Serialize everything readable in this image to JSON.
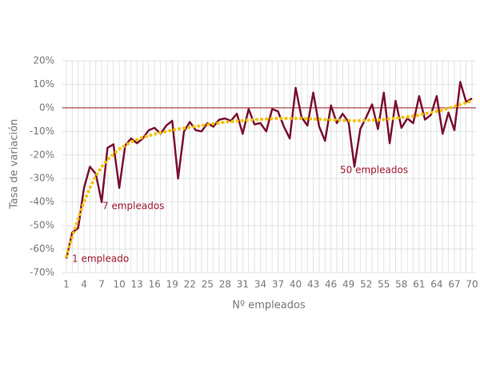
{
  "chart_data": {
    "type": "line",
    "y_label": "Tasa de variación",
    "x_label": "Nº empleados",
    "annotations": [
      "1 empleado",
      "7 empleados",
      "50 empleados"
    ],
    "x": [
      1,
      2,
      3,
      4,
      5,
      6,
      7,
      8,
      9,
      10,
      11,
      12,
      13,
      14,
      15,
      16,
      17,
      18,
      19,
      20,
      21,
      22,
      23,
      24,
      25,
      26,
      27,
      28,
      29,
      30,
      31,
      32,
      33,
      34,
      35,
      36,
      37,
      38,
      39,
      40,
      41,
      42,
      43,
      44,
      45,
      46,
      47,
      48,
      49,
      50,
      51,
      52,
      53,
      54,
      55,
      56,
      57,
      58,
      59,
      60,
      61,
      62,
      63,
      64,
      65,
      66,
      67,
      68,
      69,
      70
    ],
    "series": [
      {
        "color": "#7b1030",
        "values": [
          -64,
          -53,
          -51,
          -34,
          -25,
          -28,
          -40,
          -17,
          -15.5,
          -34,
          -16,
          -13,
          -15,
          -13,
          -9.5,
          -8.5,
          -11,
          -7.5,
          -5.5,
          -30,
          -10,
          -6,
          -9.5,
          -10,
          -6.5,
          -8,
          -5,
          -4.5,
          -5.5,
          -2.5,
          -11,
          -0.5,
          -7,
          -6.5,
          -10,
          -0.5,
          -1.5,
          -8,
          -13,
          8.5,
          -4,
          -7.5,
          6.5,
          -8,
          -14,
          1,
          -6.5,
          -2.5,
          -6,
          -25,
          -9,
          -4,
          1.5,
          -9,
          6.5,
          -15,
          3,
          -8.5,
          -4.5,
          -6.5,
          5,
          -5,
          -3,
          5,
          -11,
          -2,
          -9.5,
          11,
          2.5,
          4
        ]
      },
      {
        "color": "#f5c000",
        "dotted": true,
        "x": [
          1,
          2,
          3,
          4,
          5,
          6,
          7,
          8,
          10,
          12,
          14,
          17,
          20,
          24,
          28,
          33,
          37,
          41,
          45,
          50,
          55,
          60,
          65,
          70
        ],
        "values": [
          -63,
          -55,
          -47,
          -40,
          -34,
          -29,
          -25,
          -22,
          -17.5,
          -14.5,
          -12.5,
          -10.5,
          -9,
          -7.5,
          -6,
          -5,
          -4.5,
          -4.5,
          -5,
          -5.5,
          -5,
          -3.5,
          -1,
          3
        ]
      }
    ],
    "hline": 0,
    "hline_color": "#a0182e",
    "annotation_color": "#a0182e",
    "xlim": [
      1,
      70
    ],
    "xticks": [
      1,
      4,
      7,
      10,
      13,
      16,
      19,
      22,
      25,
      28,
      31,
      34,
      37,
      40,
      43,
      46,
      49,
      52,
      55,
      58,
      61,
      64,
      67,
      70
    ],
    "ylim": [
      -70,
      20
    ],
    "yticks": [
      {
        "value": 20,
        "label": "20%"
      },
      {
        "value": 10,
        "label": "10%"
      },
      {
        "value": 0,
        "label": "0%"
      },
      {
        "value": -10,
        "label": "-10%"
      },
      {
        "value": -20,
        "label": "-20%"
      },
      {
        "value": -30,
        "label": "-30%"
      },
      {
        "value": -40,
        "label": "-40%"
      },
      {
        "value": -50,
        "label": "-50%"
      },
      {
        "value": -60,
        "label": "-60%"
      },
      {
        "value": -70,
        "label": "-70%"
      }
    ],
    "grid": true
  }
}
